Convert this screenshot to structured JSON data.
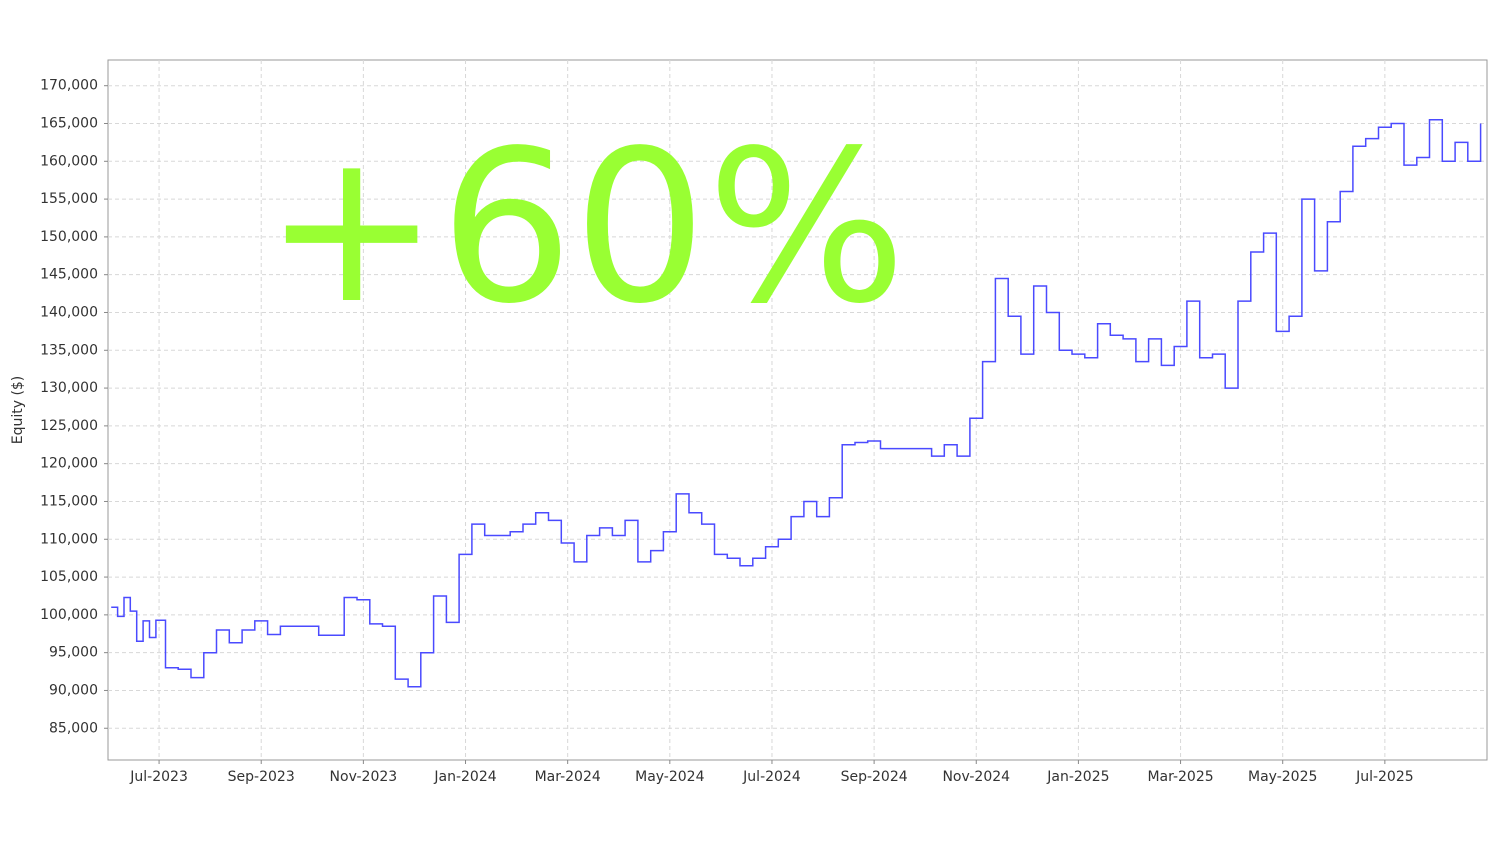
{
  "chart_data": {
    "type": "line",
    "annotation": "+60%",
    "annotation_color": "#99ff33",
    "ylabel": "Equity ($)",
    "color": "#4a4aff",
    "grid": true,
    "xlim": [
      "2023-06",
      "2025-09"
    ],
    "xticks": [
      {
        "value": "2023-07",
        "label": "Jul-2023"
      },
      {
        "value": "2023-09",
        "label": "Sep-2023"
      },
      {
        "value": "2023-11",
        "label": "Nov-2023"
      },
      {
        "value": "2024-01",
        "label": "Jan-2024"
      },
      {
        "value": "2024-03",
        "label": "Mar-2024"
      },
      {
        "value": "2024-05",
        "label": "May-2024"
      },
      {
        "value": "2024-07",
        "label": "Jul-2024"
      },
      {
        "value": "2024-09",
        "label": "Sep-2024"
      },
      {
        "value": "2024-11",
        "label": "Nov-2024"
      },
      {
        "value": "2025-01",
        "label": "Jan-2025"
      },
      {
        "value": "2025-03",
        "label": "Mar-2025"
      },
      {
        "value": "2025-05",
        "label": "May-2025"
      },
      {
        "value": "2025-07",
        "label": "Jul-2025"
      }
    ],
    "ylim": [
      80800,
      173400
    ],
    "yticks": [
      {
        "value": 85000,
        "label": "85,000"
      },
      {
        "value": 90000,
        "label": "90,000"
      },
      {
        "value": 95000,
        "label": "95,000"
      },
      {
        "value": 100000,
        "label": "100,000"
      },
      {
        "value": 105000,
        "label": "105,000"
      },
      {
        "value": 110000,
        "label": "110,000"
      },
      {
        "value": 115000,
        "label": "115,000"
      },
      {
        "value": 120000,
        "label": "120,000"
      },
      {
        "value": 125000,
        "label": "125,000"
      },
      {
        "value": 130000,
        "label": "130,000"
      },
      {
        "value": 135000,
        "label": "135,000"
      },
      {
        "value": 140000,
        "label": "140,000"
      },
      {
        "value": 145000,
        "label": "145,000"
      },
      {
        "value": 150000,
        "label": "150,000"
      },
      {
        "value": 155000,
        "label": "155,000"
      },
      {
        "value": 160000,
        "label": "160,000"
      },
      {
        "value": 165000,
        "label": "165,000"
      },
      {
        "value": 170000,
        "label": "170,000"
      }
    ],
    "x": [
      "2023-06",
      "2023-06",
      "2023-06",
      "2023-06",
      "2023-06",
      "2023-06",
      "2023-06",
      "2023-06",
      "2023-07",
      "2023-07",
      "2023-07",
      "2023-07",
      "2023-08",
      "2023-08",
      "2023-08",
      "2023-08",
      "2023-09",
      "2023-09",
      "2023-09",
      "2023-09",
      "2023-10",
      "2023-10",
      "2023-10",
      "2023-10",
      "2023-11",
      "2023-11",
      "2023-11",
      "2023-11",
      "2023-12",
      "2023-12",
      "2023-12",
      "2023-12",
      "2024-01",
      "2024-01",
      "2024-01",
      "2024-01",
      "2024-02",
      "2024-02",
      "2024-02",
      "2024-02",
      "2024-03",
      "2024-03",
      "2024-03",
      "2024-03",
      "2024-04",
      "2024-04",
      "2024-04",
      "2024-04",
      "2024-05",
      "2024-05",
      "2024-05",
      "2024-05",
      "2024-06",
      "2024-06",
      "2024-06",
      "2024-06",
      "2024-07",
      "2024-07",
      "2024-07",
      "2024-07",
      "2024-08",
      "2024-08",
      "2024-08",
      "2024-08",
      "2024-09",
      "2024-09",
      "2024-09",
      "2024-09",
      "2024-10",
      "2024-10",
      "2024-10",
      "2024-10",
      "2024-11",
      "2024-11",
      "2024-11",
      "2024-11",
      "2024-12",
      "2024-12",
      "2024-12",
      "2024-12",
      "2025-01",
      "2025-01",
      "2025-01",
      "2025-01",
      "2025-02",
      "2025-02",
      "2025-02",
      "2025-02",
      "2025-03",
      "2025-03",
      "2025-03",
      "2025-03",
      "2025-04",
      "2025-04",
      "2025-04",
      "2025-04",
      "2025-05",
      "2025-05",
      "2025-05",
      "2025-05",
      "2025-06",
      "2025-06",
      "2025-06",
      "2025-06",
      "2025-07",
      "2025-07",
      "2025-07",
      "2025-07",
      "2025-08",
      "2025-08",
      "2025-08",
      "2025-08"
    ],
    "values": [
      101000,
      99800,
      102300,
      100500,
      96500,
      99200,
      97000,
      99300,
      93000,
      92800,
      91700,
      95000,
      98000,
      96300,
      98000,
      99200,
      97400,
      98500,
      98500,
      98500,
      97300,
      97300,
      102300,
      102000,
      98800,
      98500,
      91500,
      90500,
      95000,
      102500,
      99000,
      108000,
      112000,
      110500,
      110500,
      111000,
      112000,
      113500,
      112500,
      109500,
      107000,
      110500,
      111500,
      110500,
      112500,
      107000,
      108500,
      111000,
      116000,
      113500,
      112000,
      108000,
      107500,
      106500,
      107500,
      109000,
      110000,
      113000,
      115000,
      113000,
      115500,
      122500,
      122800,
      123000,
      122000,
      122000,
      122000,
      122000,
      121000,
      122500,
      121000,
      126000,
      133500,
      144500,
      139500,
      134500,
      143500,
      140000,
      135000,
      134500,
      134000,
      138500,
      137000,
      136500,
      133500,
      136500,
      133000,
      135500,
      141500,
      134000,
      134500,
      130000,
      141500,
      148000,
      150500,
      137500,
      139500,
      155000,
      145500,
      152000,
      156000,
      162000,
      163000,
      164500,
      165000,
      159500,
      160500,
      165500,
      160000,
      162500,
      160000,
      165000
    ]
  }
}
